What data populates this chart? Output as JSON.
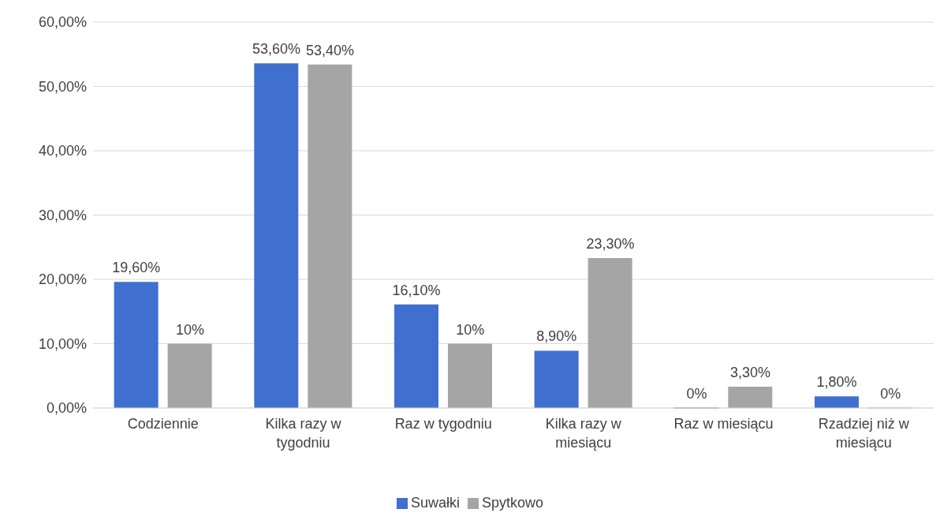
{
  "chart_data": {
    "type": "bar",
    "categories": [
      "Codziennie",
      "Kilka razy w tygodniu",
      "Raz w tygodniu",
      "Kilka razy w miesiącu",
      "Raz w miesiącu",
      "Rzadziej niż w miesiącu"
    ],
    "series": [
      {
        "name": "Suwałki",
        "color": "#3f6fcf",
        "values": [
          19.6,
          53.6,
          16.1,
          8.9,
          0,
          1.8
        ],
        "value_labels": [
          "19,60%",
          "53,60%",
          "16,10%",
          "8,90%",
          "0%",
          "1,80%"
        ]
      },
      {
        "name": "Spytkowo",
        "color": "#a5a5a5",
        "values": [
          10,
          53.4,
          10,
          23.3,
          3.3,
          0
        ],
        "value_labels": [
          "10%",
          "53,40%",
          "10%",
          "23,30%",
          "3,30%",
          "0%"
        ]
      }
    ],
    "ylim": [
      0,
      60
    ],
    "yticks": [
      {
        "value": 0,
        "label": "0,00%"
      },
      {
        "value": 10,
        "label": "10,00%"
      },
      {
        "value": 20,
        "label": "20,00%"
      },
      {
        "value": 30,
        "label": "30,00%"
      },
      {
        "value": 40,
        "label": "40,00%"
      },
      {
        "value": 50,
        "label": "50,00%"
      },
      {
        "value": 60,
        "label": "60,00%"
      }
    ],
    "grid": "y",
    "legend": "bottom"
  }
}
